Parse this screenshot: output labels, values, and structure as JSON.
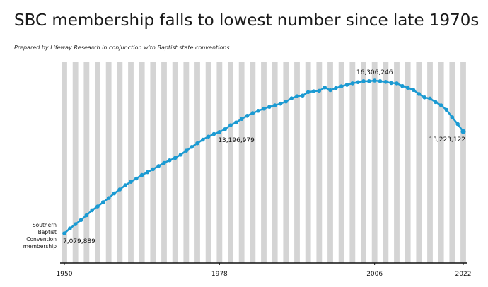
{
  "chart_data": {
    "type": "line",
    "title": "SBC membership falls to lowest number since late 1970s",
    "subtitle": "Prepared by Lifeway Research in conjunction with Baptist state conventions",
    "x": [
      1950,
      1951,
      1952,
      1953,
      1954,
      1955,
      1956,
      1957,
      1958,
      1959,
      1960,
      1961,
      1962,
      1963,
      1964,
      1965,
      1966,
      1967,
      1968,
      1969,
      1970,
      1971,
      1972,
      1973,
      1974,
      1975,
      1976,
      1977,
      1978,
      1979,
      1980,
      1981,
      1982,
      1983,
      1984,
      1985,
      1986,
      1987,
      1988,
      1989,
      1990,
      1991,
      1992,
      1993,
      1994,
      1995,
      1996,
      1997,
      1998,
      1999,
      2000,
      2001,
      2002,
      2003,
      2004,
      2005,
      2006,
      2007,
      2008,
      2009,
      2010,
      2011,
      2012,
      2013,
      2014,
      2015,
      2016,
      2017,
      2018,
      2019,
      2020,
      2021,
      2022
    ],
    "xlim": [
      1950,
      2022
    ],
    "xticks": [
      1950,
      1978,
      2006,
      2022
    ],
    "series": [
      {
        "name": "Southern Baptist Convention membership",
        "color": "#1b9ad2",
        "values": [
          7079889,
          7370000,
          7630000,
          7880000,
          8170000,
          8470000,
          8700000,
          8960000,
          9210000,
          9490000,
          9730000,
          9980000,
          10190000,
          10390000,
          10600000,
          10770000,
          10950000,
          11140000,
          11330000,
          11490000,
          11630000,
          11830000,
          12070000,
          12300000,
          12520000,
          12740000,
          12920000,
          13080000,
          13196979,
          13370000,
          13610000,
          13780000,
          13990000,
          14180000,
          14340000,
          14480000,
          14610000,
          14720000,
          14810000,
          14910000,
          15040000,
          15230000,
          15360000,
          15400000,
          15610000,
          15660000,
          15690000,
          15890000,
          15730000,
          15850000,
          15960000,
          16050000,
          16140000,
          16210000,
          16270000,
          16270000,
          16306246,
          16270000,
          16230000,
          16160000,
          16140000,
          15980000,
          15870000,
          15740000,
          15500000,
          15290000,
          15220000,
          15010000,
          14810000,
          14530000,
          14090000,
          13680000,
          13223122
        ],
        "value_labels": [
          "7,079,889",
          null,
          null,
          null,
          null,
          null,
          null,
          null,
          null,
          null,
          null,
          null,
          null,
          null,
          null,
          null,
          null,
          null,
          null,
          null,
          null,
          null,
          null,
          null,
          null,
          null,
          null,
          null,
          "13,196,979",
          null,
          null,
          null,
          null,
          null,
          null,
          null,
          null,
          null,
          null,
          null,
          null,
          null,
          null,
          null,
          null,
          null,
          null,
          null,
          null,
          null,
          null,
          null,
          null,
          null,
          null,
          null,
          "16,306,246",
          null,
          null,
          null,
          null,
          null,
          null,
          null,
          null,
          null,
          null,
          null,
          null,
          null,
          null,
          null,
          "13,223,122"
        ]
      }
    ]
  }
}
